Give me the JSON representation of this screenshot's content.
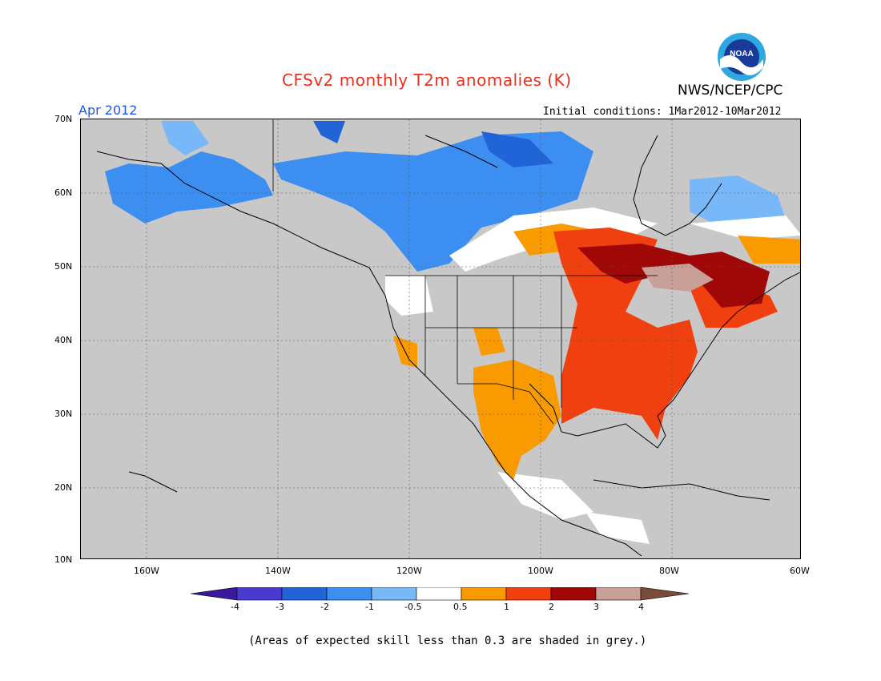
{
  "title": "CFSv2 monthly T2m anomalies (K)",
  "agency": "NWS/NCEP/CPC",
  "logo_text": "NOAA",
  "period": "Apr 2012",
  "initial_conditions": "Initial conditions: 1Mar2012-10Mar2012",
  "footnote": "(Areas of expected skill less than 0.3 are shaded in grey.)",
  "map": {
    "lat_labels": [
      "70N",
      "60N",
      "50N",
      "40N",
      "30N",
      "20N",
      "10N"
    ],
    "lon_labels": [
      "160W",
      "140W",
      "120W",
      "100W",
      "80W",
      "60W"
    ],
    "background_color": "#c8c8c8"
  },
  "colorbar": {
    "tick_labels": [
      "-4",
      "-3",
      "-2",
      "-1",
      "-0.5",
      "0.5",
      "1",
      "2",
      "3",
      "4"
    ],
    "colors": [
      "#3a1a9a",
      "#4a3ad0",
      "#2064d8",
      "#3c8ef0",
      "#78b8f8",
      "#ffffff",
      "#f89a00",
      "#f04010",
      "#a00808",
      "#c8a098",
      "#7a4a3a"
    ]
  }
}
